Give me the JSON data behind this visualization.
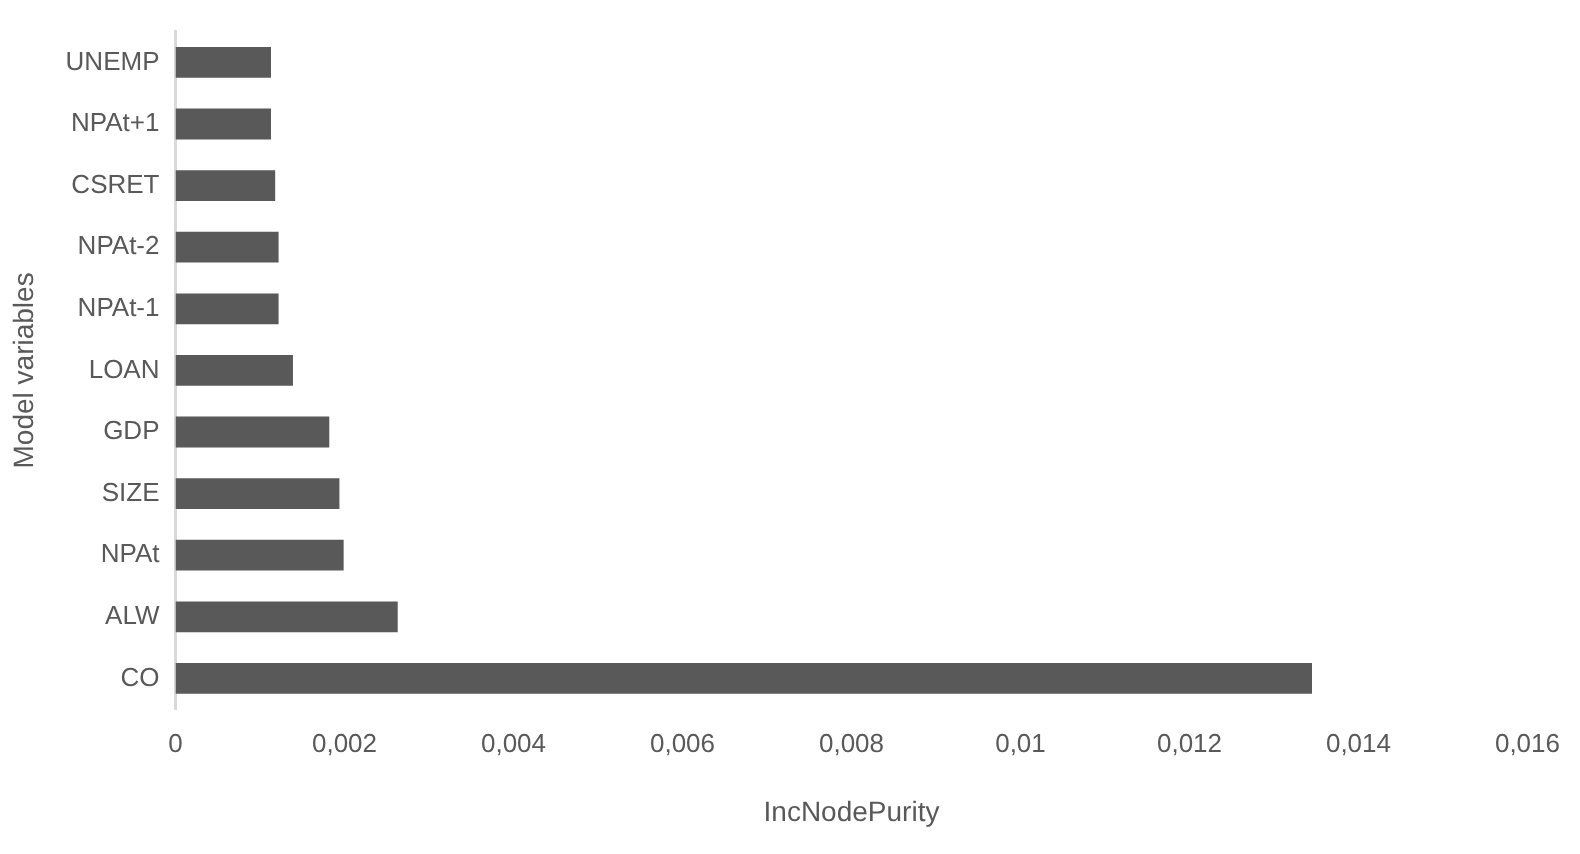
{
  "chart_data": {
    "type": "bar",
    "orientation": "horizontal",
    "xlabel": "IncNodePurity",
    "ylabel": "Model variables",
    "categories": [
      "UNEMP",
      "NPAt+1",
      "CSRET",
      "NPAt-2",
      "NPAt-1",
      "LOAN",
      "GDP",
      "SIZE",
      "NPAt",
      "ALW",
      "CO"
    ],
    "values": [
      0.00113,
      0.00113,
      0.00118,
      0.00122,
      0.00122,
      0.00139,
      0.00182,
      0.00194,
      0.00199,
      0.00263,
      0.01345
    ],
    "color": "#595959",
    "xlim": [
      0,
      0.016
    ],
    "xticks": [
      0,
      {
        "value": 0.002,
        "label": "0,002"
      },
      {
        "value": 0.004,
        "label": "0,004"
      },
      {
        "value": 0.006,
        "label": "0,006"
      },
      {
        "value": 0.008,
        "label": "0,008"
      },
      {
        "value": 0.01,
        "label": "0,01"
      },
      {
        "value": 0.012,
        "label": "0,012"
      },
      {
        "value": 0.014,
        "label": "0,014"
      },
      {
        "value": 0.016,
        "label": "0,016"
      }
    ],
    "grid": false,
    "legend": false
  }
}
